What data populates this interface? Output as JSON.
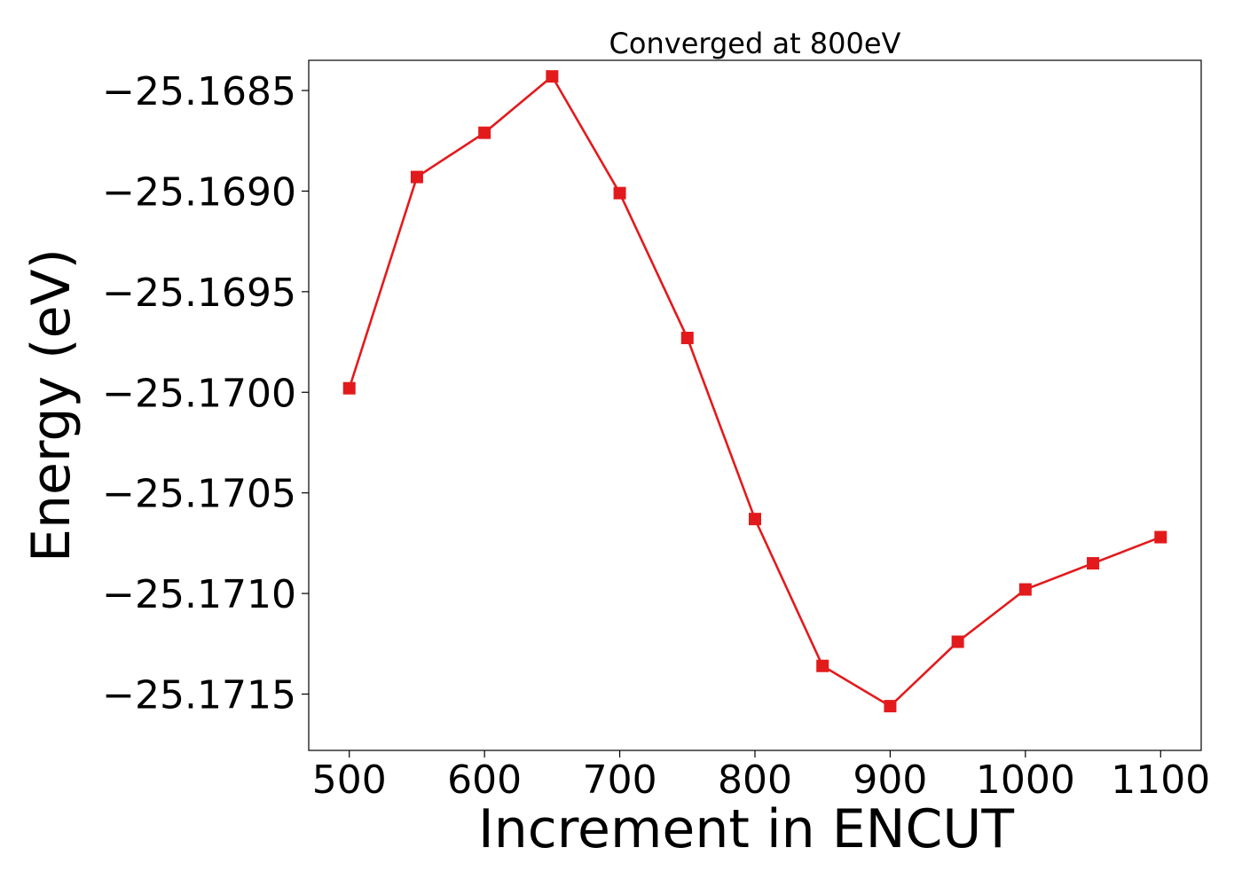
{
  "chart_data": {
    "type": "line",
    "title": "Converged at 800eV",
    "xlabel": "Increment in ENCUT",
    "ylabel": "Energy (eV)",
    "x": [
      500,
      550,
      600,
      650,
      700,
      750,
      800,
      850,
      900,
      950,
      1000,
      1050,
      1100
    ],
    "series": [
      {
        "values": [
          -25.16998,
          -25.16893,
          -25.16871,
          -25.16843,
          -25.16901,
          -25.16973,
          -25.17063,
          -25.17136,
          -25.17156,
          -25.17124,
          -25.17098,
          -25.17085,
          -25.17072
        ],
        "color": "#e31a1c",
        "marker": "square"
      }
    ],
    "xlim": [
      470,
      1130
    ],
    "ylim": [
      -25.17178,
      -25.16835
    ],
    "xticks": [
      500,
      600,
      700,
      800,
      900,
      1000,
      1100
    ],
    "xtick_labels": [
      "500",
      "600",
      "700",
      "800",
      "900",
      "1000",
      "1100"
    ],
    "yticks": [
      -25.1685,
      -25.169,
      -25.1695,
      -25.17,
      -25.1705,
      -25.171,
      -25.1715
    ],
    "ytick_labels": [
      "−25.1685",
      "−25.1690",
      "−25.1695",
      "−25.1700",
      "−25.1705",
      "−25.1710",
      "−25.1715"
    ],
    "grid": false,
    "legend": false
  }
}
